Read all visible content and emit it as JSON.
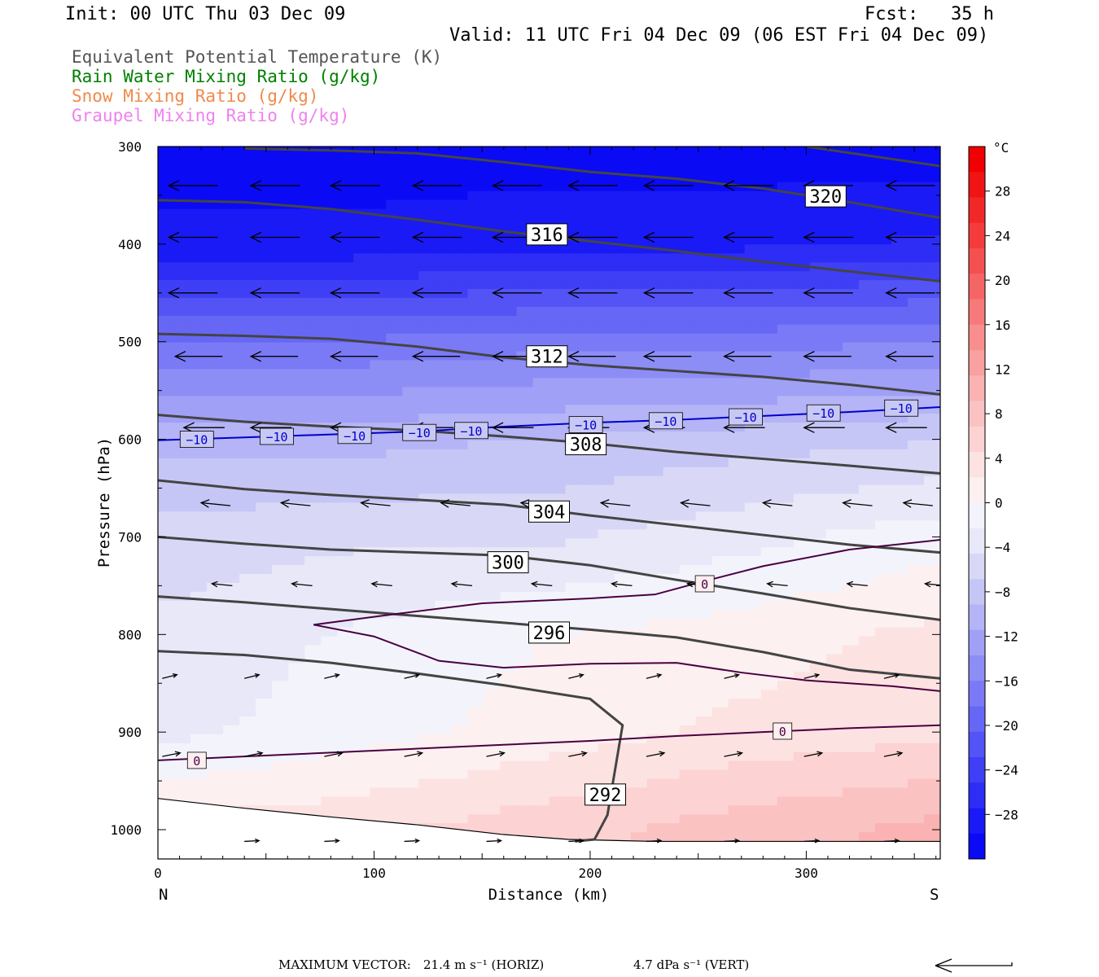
{
  "header": {
    "init": "Init: 00 UTC Thu 03 Dec 09",
    "fcst": "Fcst:   35 h",
    "valid": "Valid: 11 UTC Fri 04 Dec 09 (06 EST Fri 04 Dec 09)"
  },
  "legend": [
    {
      "label": "Equivalent Potential Temperature (K)",
      "color": "#555555"
    },
    {
      "label": "Rain Water Mixing Ratio (g/kg)",
      "color": "#008000"
    },
    {
      "label": "Snow Mixing Ratio (g/kg)",
      "color": "#f08a4b"
    },
    {
      "label": "Graupel Mixing Ratio (g/kg)",
      "color": "#ee82ee"
    }
  ],
  "chart_data": {
    "type": "cross-section",
    "xlabel": "Distance (km)",
    "ylabel": "Pressure (hPa)",
    "xlim": [
      0,
      362
    ],
    "ylim": [
      1030,
      300
    ],
    "x_ticks": [
      "0",
      "100",
      "200",
      "300"
    ],
    "x_tick_values": [
      0,
      100,
      200,
      300
    ],
    "y_ticks": [
      "300",
      "400",
      "500",
      "600",
      "700",
      "800",
      "900",
      "1000"
    ],
    "y_tick_values": [
      300,
      400,
      500,
      600,
      700,
      800,
      900,
      1000
    ],
    "left_end": "N",
    "right_end": "S",
    "colorbar": {
      "unit": "°C",
      "labels": [
        "28",
        "24",
        "20",
        "16",
        "12",
        "8",
        "4",
        "0",
        "−4",
        "−8",
        "−12",
        "−16",
        "−20",
        "−24",
        "−28"
      ],
      "values": [
        28,
        24,
        20,
        16,
        12,
        8,
        4,
        0,
        -4,
        -8,
        -12,
        -16,
        -20,
        -24,
        -28
      ],
      "range": [
        -32,
        32
      ],
      "colors": [
        "#0a0af5",
        "#1a1af6",
        "#2d2df6",
        "#3f3ff6",
        "#5353f6",
        "#6767f6",
        "#7a7af6",
        "#8d8df6",
        "#a0a0f6",
        "#b4b4f6",
        "#c6c6f6",
        "#d8d8f6",
        "#e8e8f8",
        "#f3f3fc",
        "#fcf0f0",
        "#fde2e2",
        "#fcd2d2",
        "#fbc2c2",
        "#fab2b2",
        "#f9a0a0",
        "#f88e8e",
        "#f77a7a",
        "#f66565",
        "#f55050",
        "#f43c3c",
        "#f22828",
        "#f11414",
        "#f00000"
      ]
    },
    "theta_e_contours": [
      {
        "level": "292",
        "points": [
          [
            0,
            817
          ],
          [
            40,
            821
          ],
          [
            80,
            829
          ],
          [
            120,
            840
          ],
          [
            160,
            852
          ],
          [
            200,
            866
          ],
          [
            215,
            893
          ],
          [
            208,
            985
          ],
          [
            202,
            1010
          ],
          [
            193,
            1012
          ]
        ]
      },
      {
        "level": "296",
        "points": [
          [
            0,
            761
          ],
          [
            40,
            767
          ],
          [
            80,
            774
          ],
          [
            120,
            781
          ],
          [
            160,
            788
          ],
          [
            200,
            795
          ],
          [
            240,
            803
          ],
          [
            280,
            818
          ],
          [
            320,
            836
          ],
          [
            362,
            845
          ]
        ]
      },
      {
        "level": "300",
        "points": [
          [
            0,
            700
          ],
          [
            40,
            707
          ],
          [
            80,
            713
          ],
          [
            120,
            716
          ],
          [
            160,
            719
          ],
          [
            200,
            729
          ],
          [
            240,
            744
          ],
          [
            280,
            758
          ],
          [
            320,
            773
          ],
          [
            362,
            785
          ]
        ]
      },
      {
        "level": "304",
        "points": [
          [
            0,
            642
          ],
          [
            40,
            651
          ],
          [
            80,
            657
          ],
          [
            120,
            662
          ],
          [
            160,
            667
          ],
          [
            200,
            678
          ],
          [
            240,
            688
          ],
          [
            280,
            698
          ],
          [
            320,
            708
          ],
          [
            362,
            716
          ]
        ]
      },
      {
        "level": "308",
        "points": [
          [
            0,
            575
          ],
          [
            40,
            582
          ],
          [
            80,
            587
          ],
          [
            120,
            591
          ],
          [
            160,
            597
          ],
          [
            200,
            604
          ],
          [
            240,
            613
          ],
          [
            280,
            620
          ],
          [
            320,
            627
          ],
          [
            362,
            635
          ]
        ]
      },
      {
        "level": "312",
        "points": [
          [
            0,
            492
          ],
          [
            40,
            494
          ],
          [
            80,
            497
          ],
          [
            120,
            505
          ],
          [
            160,
            516
          ],
          [
            200,
            524
          ],
          [
            240,
            530
          ],
          [
            280,
            536
          ],
          [
            320,
            544
          ],
          [
            362,
            554
          ]
        ]
      },
      {
        "level": "316",
        "points": [
          [
            0,
            355
          ],
          [
            40,
            357
          ],
          [
            80,
            364
          ],
          [
            120,
            375
          ],
          [
            160,
            387
          ],
          [
            200,
            397
          ],
          [
            240,
            407
          ],
          [
            280,
            418
          ],
          [
            320,
            428
          ],
          [
            362,
            438
          ]
        ]
      },
      {
        "level": "320",
        "points": [
          [
            40,
            302
          ],
          [
            80,
            304
          ],
          [
            120,
            307
          ],
          [
            160,
            316
          ],
          [
            200,
            326
          ],
          [
            240,
            333
          ],
          [
            280,
            343
          ],
          [
            320,
            357
          ],
          [
            362,
            373
          ]
        ]
      }
    ],
    "theta_e_extra": [
      {
        "level": "",
        "points": [
          [
            300,
            300
          ],
          [
            362,
            320
          ]
        ]
      }
    ],
    "theta_e_labels": [
      {
        "text": "316",
        "x": 180,
        "y": 390
      },
      {
        "text": "312",
        "x": 180,
        "y": 515
      },
      {
        "text": "308",
        "x": 198,
        "y": 605
      },
      {
        "text": "304",
        "x": 181,
        "y": 674
      },
      {
        "text": "300",
        "x": 162,
        "y": 726
      },
      {
        "text": "296",
        "x": 181,
        "y": 798
      },
      {
        "text": "292",
        "x": 207,
        "y": 964
      },
      {
        "text": "320",
        "x": 309,
        "y": 351
      }
    ],
    "temp_contours": [
      {
        "level": "−10",
        "color": "#0000cc",
        "points": [
          [
            0,
            601
          ],
          [
            40,
            598
          ],
          [
            80,
            595
          ],
          [
            120,
            592
          ],
          [
            160,
            587
          ],
          [
            200,
            583
          ],
          [
            240,
            580
          ],
          [
            280,
            576
          ],
          [
            320,
            572
          ],
          [
            362,
            567
          ]
        ]
      },
      {
        "level": "0",
        "color": "#4a0040",
        "points": [
          [
            0,
            929
          ],
          [
            40,
            925
          ],
          [
            80,
            921
          ],
          [
            120,
            917
          ],
          [
            160,
            913
          ],
          [
            200,
            909
          ],
          [
            240,
            904
          ],
          [
            280,
            900
          ],
          [
            320,
            896
          ],
          [
            362,
            893
          ]
        ]
      },
      {
        "level": "0",
        "color": "#4a0040",
        "points": [
          [
            72,
            790
          ],
          [
            100,
            802
          ],
          [
            130,
            827
          ],
          [
            160,
            834
          ],
          [
            200,
            830
          ],
          [
            240,
            829
          ],
          [
            270,
            839
          ],
          [
            300,
            847
          ],
          [
            340,
            853
          ],
          [
            362,
            858
          ]
        ]
      },
      {
        "level": "0",
        "color": "#4a0040",
        "points": [
          [
            72,
            790
          ],
          [
            110,
            779
          ],
          [
            150,
            768
          ],
          [
            200,
            763
          ],
          [
            230,
            759
          ],
          [
            250,
            747
          ],
          [
            280,
            730
          ],
          [
            320,
            713
          ],
          [
            362,
            703
          ]
        ]
      }
    ],
    "temp_labels": [
      {
        "text": "−10",
        "x": 18,
        "y": 600,
        "color": "#0000cc"
      },
      {
        "text": "−10",
        "x": 55,
        "y": 597,
        "color": "#0000cc"
      },
      {
        "text": "−10",
        "x": 91,
        "y": 596,
        "color": "#0000cc"
      },
      {
        "text": "−10",
        "x": 121,
        "y": 593,
        "color": "#0000cc"
      },
      {
        "text": "−10",
        "x": 145,
        "y": 591,
        "color": "#0000cc"
      },
      {
        "text": "−10",
        "x": 198,
        "y": 585,
        "color": "#0000cc"
      },
      {
        "text": "−10",
        "x": 235,
        "y": 581,
        "color": "#0000cc"
      },
      {
        "text": "−10",
        "x": 272,
        "y": 577,
        "color": "#0000cc"
      },
      {
        "text": "−10",
        "x": 308,
        "y": 573,
        "color": "#0000cc"
      },
      {
        "text": "−10",
        "x": 344,
        "y": 568,
        "color": "#0000cc"
      },
      {
        "text": "0",
        "x": 18,
        "y": 929,
        "color": "#4a0040"
      },
      {
        "text": "0",
        "x": 253,
        "y": 748,
        "color": "#4a0040"
      },
      {
        "text": "0",
        "x": 289,
        "y": 899,
        "color": "#4a0040"
      }
    ],
    "temperature_field": [
      {
        "p": 300,
        "t": [
          -31,
          -31,
          -31,
          -31,
          -31
        ]
      },
      {
        "p": 400,
        "t": [
          -29,
          -29,
          -28,
          -28,
          -27
        ]
      },
      {
        "p": 500,
        "t": [
          -18,
          -18,
          -17,
          -17,
          -16
        ]
      },
      {
        "p": 600,
        "t": [
          -10,
          -10,
          -9,
          -8,
          -7
        ]
      },
      {
        "p": 700,
        "t": [
          -6,
          -5,
          -5,
          -3,
          -1
        ]
      },
      {
        "p": 800,
        "t": [
          -4,
          -2,
          0,
          1,
          3
        ]
      },
      {
        "p": 900,
        "t": [
          -3,
          -1,
          1,
          3,
          4
        ]
      },
      {
        "p": 1000,
        "t": [
          3,
          4,
          6,
          8,
          10
        ]
      }
    ],
    "wind_vectors": [
      {
        "p": 340,
        "xs": [
          5,
          43,
          80,
          118,
          155,
          190,
          225,
          262,
          299,
          337
        ],
        "u": -1,
        "w": 0.0,
        "len": 60
      },
      {
        "p": 393,
        "xs": [
          5,
          43,
          80,
          118,
          155,
          190,
          225,
          262,
          299,
          337
        ],
        "u": -1,
        "w": 0.0,
        "len": 60
      },
      {
        "p": 450,
        "xs": [
          5,
          43,
          80,
          118,
          155,
          190,
          225,
          262,
          299,
          337
        ],
        "u": -1,
        "w": 0.0,
        "len": 60
      },
      {
        "p": 515,
        "xs": [
          8,
          43,
          80,
          118,
          155,
          190,
          225,
          262,
          299,
          337
        ],
        "u": -1,
        "w": 0.0,
        "len": 58
      },
      {
        "p": 588,
        "xs": [
          12,
          43,
          80,
          118,
          155,
          190,
          225,
          262,
          299,
          337
        ],
        "u": -1,
        "w": 0.0,
        "len": 50
      },
      {
        "p": 668,
        "xs": [
          20,
          57,
          94,
          131,
          168,
          205,
          242,
          280,
          317,
          345
        ],
        "u": -1,
        "w": 0.1,
        "len": 36
      },
      {
        "p": 750,
        "xs": [
          25,
          62,
          99,
          136,
          173,
          210,
          245,
          282,
          319,
          355
        ],
        "u": -1,
        "w": 0.1,
        "len": 25
      },
      {
        "p": 845,
        "xs": [
          2,
          40,
          77,
          114,
          152,
          190,
          226,
          262,
          299,
          336
        ],
        "u": 1,
        "w": -0.25,
        "len": 18
      },
      {
        "p": 925,
        "xs": [
          2,
          40,
          77,
          114,
          152,
          190,
          226,
          262,
          299,
          336
        ],
        "u": 1,
        "w": -0.2,
        "len": 22
      },
      {
        "p": 1012,
        "xs": [
          40,
          77,
          114,
          152,
          190,
          226,
          262,
          299,
          336
        ],
        "u": 1,
        "w": -0.05,
        "len": 18
      }
    ],
    "ground": [
      [
        0,
        968
      ],
      [
        40,
        978
      ],
      [
        80,
        987
      ],
      [
        120,
        995
      ],
      [
        160,
        1005
      ],
      [
        190,
        1010
      ],
      [
        230,
        1012
      ],
      [
        362,
        1012
      ]
    ]
  },
  "footer": {
    "max_vector_label": "MAXIMUM VECTOR:",
    "horiz": "21.4 m s⁻¹ (HORIZ)",
    "vert": "4.7 dPa s⁻¹ (VERT)"
  }
}
